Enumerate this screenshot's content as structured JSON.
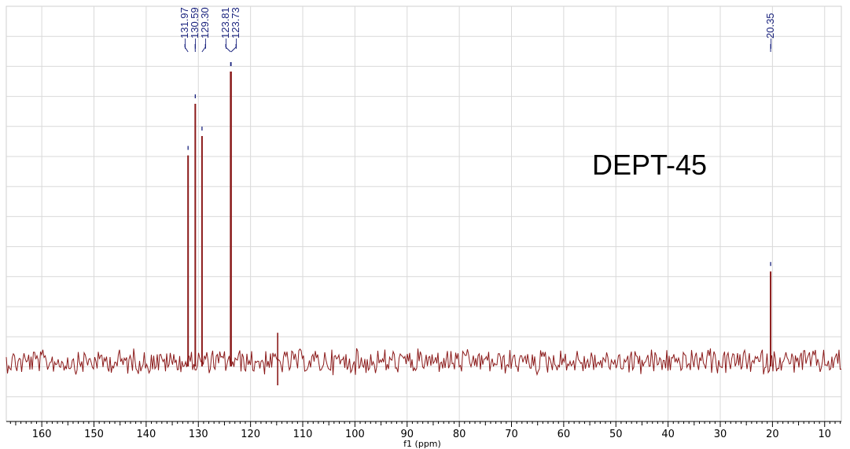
{
  "chart_data": {
    "type": "line",
    "title": "",
    "annotation": "DEPT-45",
    "xlabel": "f1 (ppm)",
    "ylabel": "",
    "x_reversed": true,
    "xlim": [
      166.8,
      6.8
    ],
    "x_ticks": [
      160,
      150,
      140,
      130,
      120,
      110,
      100,
      90,
      80,
      70,
      60,
      50,
      40,
      30,
      20,
      10
    ],
    "grid": true,
    "line_color": "#8b1a1a",
    "peak_label_color": "#1a237e",
    "baseline_intensity": 0,
    "peaks": [
      {
        "ppm": 131.97,
        "intensity": 0.64,
        "label": "131.97"
      },
      {
        "ppm": 130.59,
        "intensity": 0.8,
        "label": "130.59"
      },
      {
        "ppm": 129.3,
        "intensity": 0.7,
        "label": "129.30"
      },
      {
        "ppm": 123.81,
        "intensity": 0.9,
        "label": "123.81"
      },
      {
        "ppm": 123.73,
        "intensity": 0.9,
        "label": "123.73"
      },
      {
        "ppm": 20.35,
        "intensity": 0.28,
        "label": "20.35"
      }
    ],
    "minor_peaks": [
      {
        "ppm": 114.8,
        "intensity": 0.08
      }
    ]
  }
}
